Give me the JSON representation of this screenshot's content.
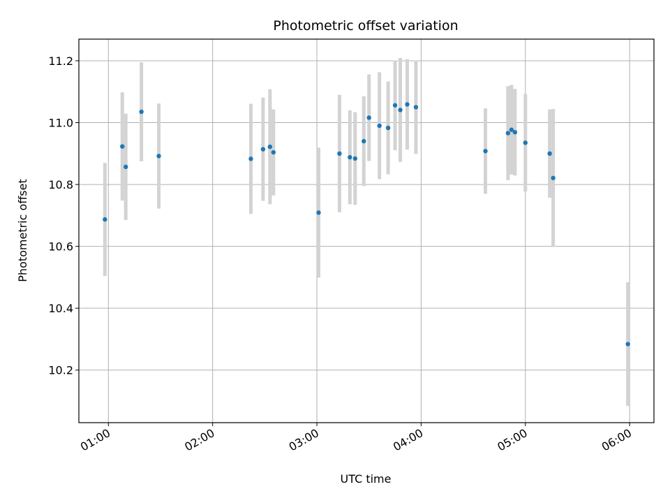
{
  "chart_data": {
    "type": "scatter",
    "title": "Photometric offset variation",
    "xlabel": "UTC time",
    "ylabel": "Photometric offset",
    "x_axis_kind": "time",
    "xlim": [
      "00:43",
      "06:14"
    ],
    "ylim": [
      10.03,
      11.27
    ],
    "x_ticks": [
      "01:00",
      "02:00",
      "03:00",
      "04:00",
      "05:00",
      "06:00"
    ],
    "y_ticks": [
      10.2,
      10.4,
      10.6,
      10.8,
      11.0,
      11.2
    ],
    "grid": true,
    "colors": {
      "point": "#1f77b4",
      "errorbar": "#d3d3d3",
      "grid": "#b0b0b0"
    },
    "series": [
      {
        "points": [
          {
            "x": "00:58",
            "y": 10.687,
            "yerr": 0.183
          },
          {
            "x": "01:08",
            "y": 10.923,
            "yerr": 0.175
          },
          {
            "x": "01:10",
            "y": 10.857,
            "yerr": 0.172
          },
          {
            "x": "01:19",
            "y": 11.035,
            "yerr": 0.16
          },
          {
            "x": "01:29",
            "y": 10.892,
            "yerr": 0.17
          },
          {
            "x": "02:22",
            "y": 10.883,
            "yerr": 0.178
          },
          {
            "x": "02:29",
            "y": 10.914,
            "yerr": 0.167
          },
          {
            "x": "02:33",
            "y": 10.922,
            "yerr": 0.186
          },
          {
            "x": "02:35",
            "y": 10.904,
            "yerr": 0.139
          },
          {
            "x": "03:01",
            "y": 10.709,
            "yerr": 0.21
          },
          {
            "x": "03:13",
            "y": 10.9,
            "yerr": 0.19
          },
          {
            "x": "03:19",
            "y": 10.888,
            "yerr": 0.152
          },
          {
            "x": "03:22",
            "y": 10.884,
            "yerr": 0.15
          },
          {
            "x": "03:27",
            "y": 10.94,
            "yerr": 0.145
          },
          {
            "x": "03:30",
            "y": 11.016,
            "yerr": 0.14
          },
          {
            "x": "03:36",
            "y": 10.99,
            "yerr": 0.173
          },
          {
            "x": "03:41",
            "y": 10.983,
            "yerr": 0.15
          },
          {
            "x": "03:45",
            "y": 11.056,
            "yerr": 0.145
          },
          {
            "x": "03:48",
            "y": 11.041,
            "yerr": 0.168
          },
          {
            "x": "03:52",
            "y": 11.059,
            "yerr": 0.146
          },
          {
            "x": "03:57",
            "y": 11.05,
            "yerr": 0.151
          },
          {
            "x": "04:37",
            "y": 10.908,
            "yerr": 0.138
          },
          {
            "x": "04:50",
            "y": 10.966,
            "yerr": 0.152
          },
          {
            "x": "04:52",
            "y": 10.977,
            "yerr": 0.145
          },
          {
            "x": "04:54",
            "y": 10.969,
            "yerr": 0.14
          },
          {
            "x": "05:00",
            "y": 10.935,
            "yerr": 0.158
          },
          {
            "x": "05:14",
            "y": 10.9,
            "yerr": 0.143
          },
          {
            "x": "05:16",
            "y": 10.821,
            "yerr": 0.223
          },
          {
            "x": "05:59",
            "y": 10.284,
            "yerr": 0.2
          }
        ]
      }
    ]
  }
}
